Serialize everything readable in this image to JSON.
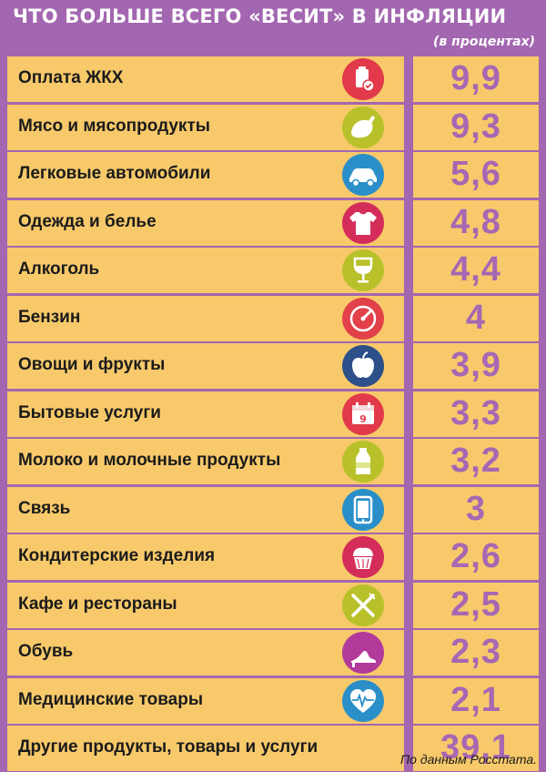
{
  "header": {
    "title": "ЧТО БОЛЬШЕ ВСЕГО «ВЕСИТ» В ИНФЛЯЦИИ",
    "unit": "(в процентах)"
  },
  "footer": {
    "source": "По данным Росстата."
  },
  "icons": [
    {
      "name": "utility-bill-icon",
      "color": "#e23a4a"
    },
    {
      "name": "ham-icon",
      "color": "#b8c12a"
    },
    {
      "name": "car-icon",
      "color": "#2a8fc9"
    },
    {
      "name": "tshirt-icon",
      "color": "#d42d5a"
    },
    {
      "name": "wine-glass-icon",
      "color": "#b8c12a"
    },
    {
      "name": "fuel-gauge-icon",
      "color": "#e2414a"
    },
    {
      "name": "apple-icon",
      "color": "#2d4f8a"
    },
    {
      "name": "calendar-icon",
      "color": "#e23a4a"
    },
    {
      "name": "milk-bottle-icon",
      "color": "#b8c12a"
    },
    {
      "name": "tablet-icon",
      "color": "#2a8fc9"
    },
    {
      "name": "cupcake-icon",
      "color": "#d42d5a"
    },
    {
      "name": "fork-knife-icon",
      "color": "#b8c12a"
    },
    {
      "name": "shoe-icon",
      "color": "#b23a9a"
    },
    {
      "name": "medical-heart-icon",
      "color": "#2a8fc9"
    }
  ],
  "chart_data": {
    "type": "table",
    "title": "ЧТО БОЛЬШЕ ВСЕГО «ВЕСИТ» В ИНФЛЯЦИИ",
    "unit": "(в процентах)",
    "categories": [
      "Оплата ЖКХ",
      "Мясо и мясопродукты",
      "Легковые автомобили",
      "Одежда и белье",
      "Алкоголь",
      "Бензин",
      "Овощи и фрукты",
      "Бытовые услуги",
      "Молоко и молочные продукты",
      "Связь",
      "Кондитерские изделия",
      "Кафе и рестораны",
      "Обувь",
      "Медицинские товары",
      "Другие продукты, товары и услуги"
    ],
    "values": [
      9.9,
      9.3,
      5.6,
      4.8,
      4.4,
      4,
      3.9,
      3.3,
      3.2,
      3,
      2.6,
      2.5,
      2.3,
      2.1,
      39.1
    ],
    "value_labels": [
      "9,9",
      "9,3",
      "5,6",
      "4,8",
      "4,4",
      "4",
      "3,9",
      "3,3",
      "3,2",
      "3",
      "2,6",
      "2,5",
      "2,3",
      "2,1",
      "39,1"
    ],
    "source": "По данным Росстата."
  }
}
